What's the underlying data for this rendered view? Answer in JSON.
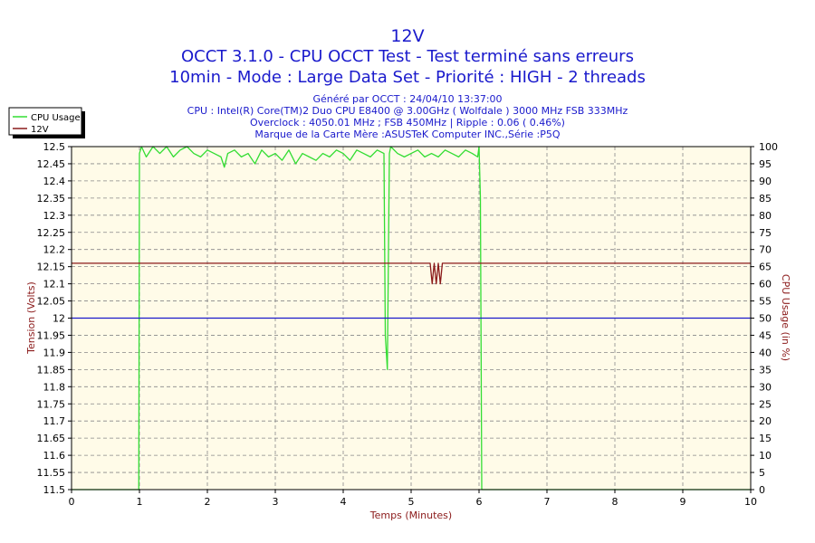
{
  "chart_data": {
    "type": "line",
    "title": "12V",
    "subtitle_lines": [
      "OCCT 3.1.0 - CPU OCCT Test - Test terminé sans erreurs",
      "10min - Mode : Large Data Set - Priorité : HIGH - 2 threads"
    ],
    "info_lines": [
      "Généré par OCCT : 24/04/10 13:37:00",
      "CPU : Intel(R) Core(TM)2 Duo CPU E8400 @ 3.00GHz ( Wolfdale ) 3000 MHz FSB 333MHz",
      "Overclock : 4050.01 MHz ; FSB 450MHz | Ripple : 0.06 ( 0.46%)",
      "Marque de la Carte Mère :ASUSTeK Computer INC.,Série :P5Q"
    ],
    "xlabel": "Temps (Minutes)",
    "ylabel_left": "Tension (Volts)",
    "ylabel_right": "CPU Usage (in %)",
    "xlim": [
      0,
      10
    ],
    "ylim_left": [
      11.5,
      12.5
    ],
    "ylim_right": [
      0,
      100
    ],
    "x_ticks": [
      "0",
      "1",
      "2",
      "3",
      "4",
      "5",
      "6",
      "7",
      "8",
      "9",
      "10"
    ],
    "y_left_ticks": [
      "12.5",
      "12.45",
      "12.4",
      "12.35",
      "12.3",
      "12.25",
      "12.2",
      "12.15",
      "12.1",
      "12.05",
      "12",
      "11.95",
      "11.9",
      "11.85",
      "11.8",
      "11.75",
      "11.7",
      "11.65",
      "11.6",
      "11.55",
      "11.5"
    ],
    "y_right_ticks": [
      "100",
      "95",
      "90",
      "85",
      "80",
      "75",
      "70",
      "65",
      "60",
      "55",
      "50",
      "45",
      "40",
      "35",
      "30",
      "25",
      "20",
      "15",
      "10",
      "5",
      "0"
    ],
    "grid": true,
    "legend_position": "top-left",
    "colors": {
      "cpu_usage": "#33dd33",
      "voltage_12v": "#8b1a1a",
      "reference": "#1a1acc",
      "plot_background": "#fffbe8",
      "title": "#1a1acc",
      "axis_label": "#8b1a1a"
    },
    "series": [
      {
        "name": "CPU Usage",
        "axis": "right",
        "x": [
          0,
          0.99,
          1.0,
          1.03,
          1.1,
          1.2,
          1.3,
          1.4,
          1.5,
          1.6,
          1.7,
          1.8,
          1.9,
          2.0,
          2.1,
          2.2,
          2.25,
          2.3,
          2.4,
          2.5,
          2.6,
          2.7,
          2.8,
          2.9,
          3.0,
          3.1,
          3.2,
          3.3,
          3.4,
          3.5,
          3.6,
          3.7,
          3.8,
          3.9,
          4.0,
          4.1,
          4.2,
          4.3,
          4.4,
          4.5,
          4.6,
          4.62,
          4.65,
          4.68,
          4.7,
          4.8,
          4.9,
          5.0,
          5.1,
          5.2,
          5.3,
          5.4,
          5.5,
          5.6,
          5.7,
          5.8,
          5.9,
          5.98,
          6.0,
          6.02,
          6.04,
          10
        ],
        "values": [
          0,
          0,
          98,
          100,
          97,
          100,
          98,
          100,
          97,
          99,
          100,
          98,
          97,
          99,
          98,
          97,
          94,
          98,
          99,
          97,
          98,
          95,
          99,
          97,
          98,
          96,
          99,
          95,
          98,
          97,
          96,
          98,
          97,
          99,
          98,
          96,
          99,
          98,
          97,
          99,
          98,
          45,
          35,
          98,
          100,
          98,
          97,
          98,
          99,
          97,
          98,
          97,
          99,
          98,
          97,
          99,
          98,
          97,
          100,
          85,
          0,
          0
        ]
      },
      {
        "name": "12V",
        "axis": "left",
        "x": [
          0,
          5.28,
          5.31,
          5.34,
          5.37,
          5.4,
          5.43,
          5.46,
          10
        ],
        "values": [
          12.16,
          12.16,
          12.1,
          12.16,
          12.1,
          12.16,
          12.1,
          12.16,
          12.16
        ]
      },
      {
        "axis": "left",
        "x": [
          0,
          10
        ],
        "values": [
          12.0,
          12.0
        ]
      }
    ]
  }
}
